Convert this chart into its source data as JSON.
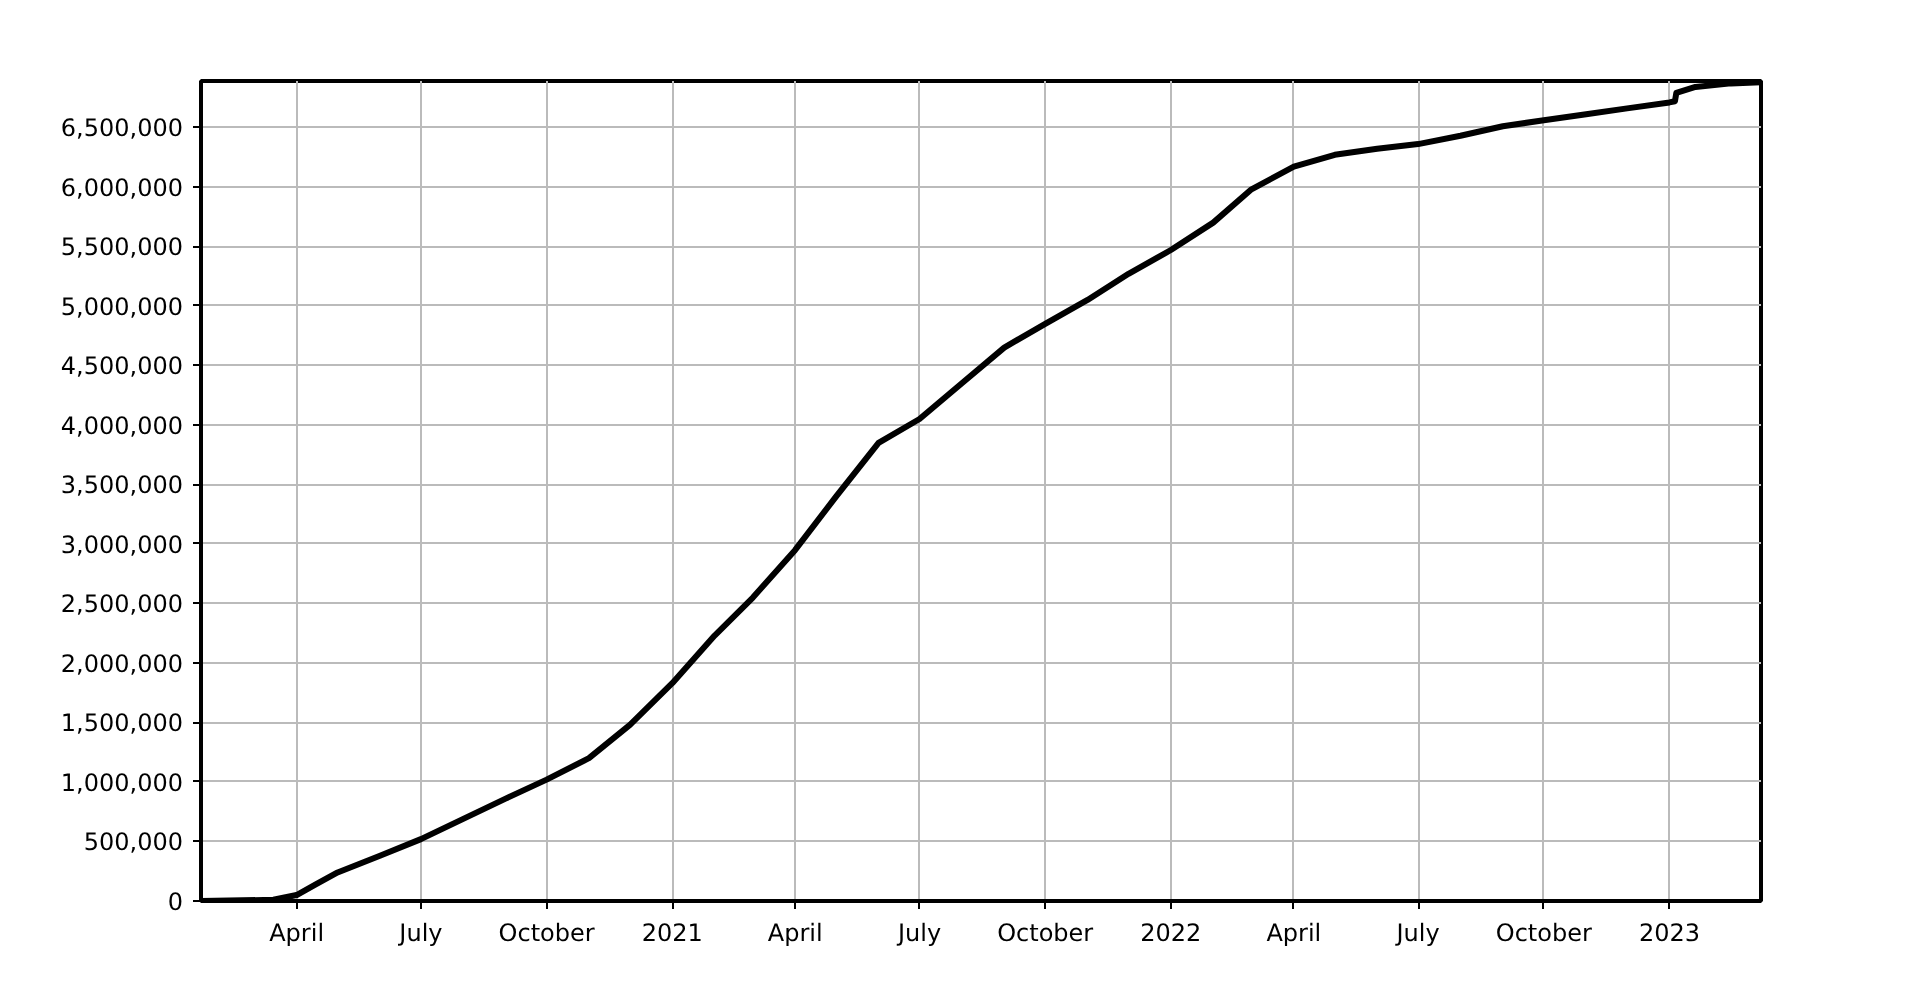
{
  "chart_data": {
    "type": "line",
    "x": [
      "2020-01-22",
      "2020-03-15",
      "2020-04-01",
      "2020-04-15",
      "2020-05-01",
      "2020-06-01",
      "2020-07-01",
      "2020-08-01",
      "2020-09-01",
      "2020-10-01",
      "2020-11-01",
      "2020-12-01",
      "2021-01-01",
      "2021-02-01",
      "2021-03-01",
      "2021-04-01",
      "2021-05-01",
      "2021-06-01",
      "2021-07-01",
      "2021-08-01",
      "2021-09-01",
      "2021-10-01",
      "2021-11-01",
      "2021-12-01",
      "2022-01-01",
      "2022-02-01",
      "2022-03-01",
      "2022-04-01",
      "2022-05-01",
      "2022-06-01",
      "2022-07-01",
      "2022-08-01",
      "2022-09-01",
      "2022-10-01",
      "2022-11-01",
      "2022-12-01",
      "2023-01-01",
      "2023-01-05",
      "2023-01-06",
      "2023-01-20",
      "2023-02-15",
      "2023-03-09"
    ],
    "series": [
      {
        "color": "#000000",
        "values": [
          0,
          10000,
          50000,
          140000,
          240000,
          380000,
          520000,
          690000,
          860000,
          1020000,
          1200000,
          1480000,
          1830000,
          2230000,
          2550000,
          2950000,
          3400000,
          3850000,
          4050000,
          4350000,
          4650000,
          4850000,
          5050000,
          5270000,
          5470000,
          5700000,
          5980000,
          6170000,
          6270000,
          6320000,
          6360000,
          6430000,
          6510000,
          6560000,
          6610000,
          6660000,
          6710000,
          6720000,
          6790000,
          6840000,
          6870000,
          6880000
        ]
      }
    ],
    "xlim": [
      "2020-01-22",
      "2023-03-09"
    ],
    "xticks": [
      {
        "value": "2020-04-01",
        "label": "April"
      },
      {
        "value": "2020-07-01",
        "label": "July"
      },
      {
        "value": "2020-10-01",
        "label": "October"
      },
      {
        "value": "2021-01-01",
        "label": "2021"
      },
      {
        "value": "2021-04-01",
        "label": "April"
      },
      {
        "value": "2021-07-01",
        "label": "July"
      },
      {
        "value": "2021-10-01",
        "label": "October"
      },
      {
        "value": "2022-01-01",
        "label": "2022"
      },
      {
        "value": "2022-04-01",
        "label": "April"
      },
      {
        "value": "2022-07-01",
        "label": "July"
      },
      {
        "value": "2022-10-01",
        "label": "October"
      },
      {
        "value": "2023-01-01",
        "label": "2023"
      }
    ],
    "ylim": [
      0,
      6890000
    ],
    "yticks": [
      {
        "value": 0,
        "label": "0"
      },
      {
        "value": 500000,
        "label": "500,000"
      },
      {
        "value": 1000000,
        "label": "1,000,000"
      },
      {
        "value": 1500000,
        "label": "1,500,000"
      },
      {
        "value": 2000000,
        "label": "2,000,000"
      },
      {
        "value": 2500000,
        "label": "2,500,000"
      },
      {
        "value": 3000000,
        "label": "3,000,000"
      },
      {
        "value": 3500000,
        "label": "3,500,000"
      },
      {
        "value": 4000000,
        "label": "4,000,000"
      },
      {
        "value": 4500000,
        "label": "4,500,000"
      },
      {
        "value": 5000000,
        "label": "5,000,000"
      },
      {
        "value": 5500000,
        "label": "5,500,000"
      },
      {
        "value": 6000000,
        "label": "6,000,000"
      },
      {
        "value": 6500000,
        "label": "6,500,000"
      }
    ],
    "grid": true,
    "marker": "none",
    "line_style": "solid"
  }
}
